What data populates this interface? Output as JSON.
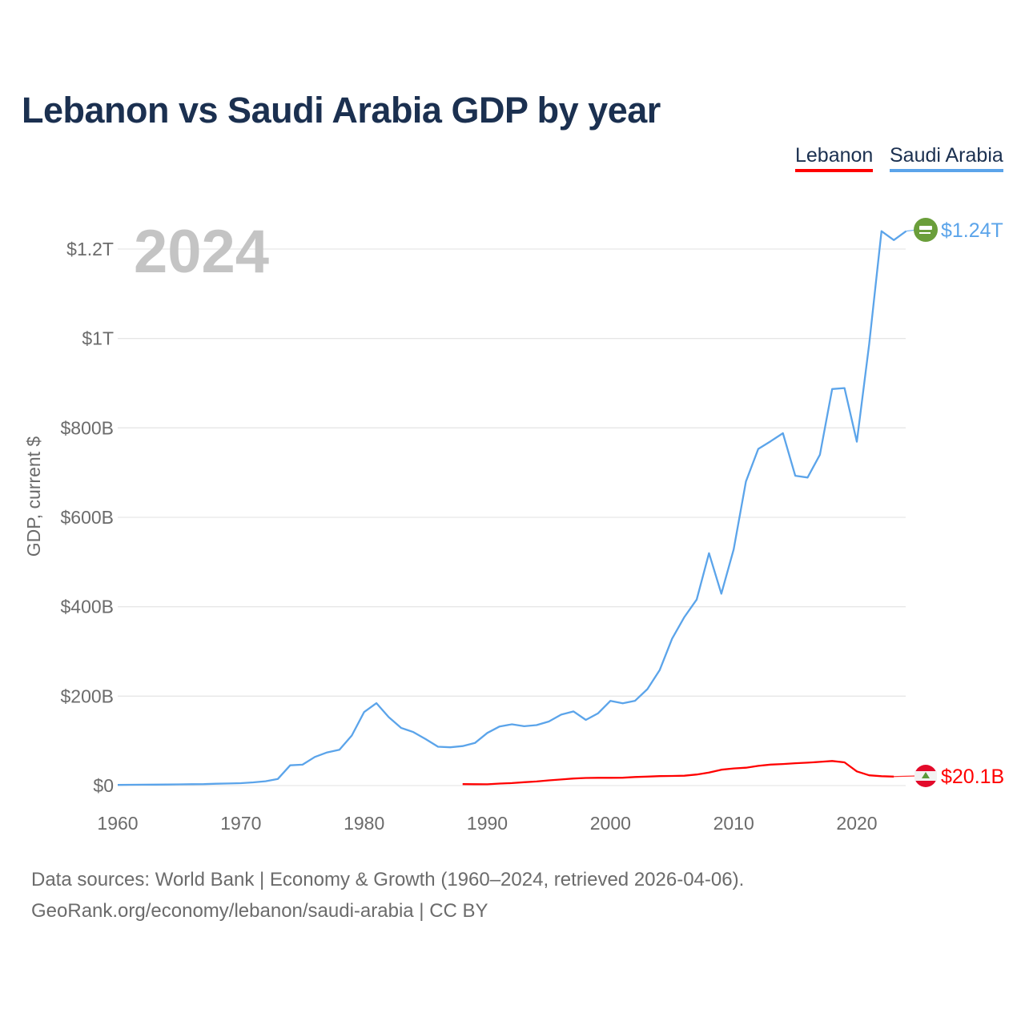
{
  "title": "Lebanon vs Saudi Arabia GDP by year",
  "legend": [
    "Lebanon",
    "Saudi Arabia"
  ],
  "year_label": "2024",
  "footer": {
    "line1": "Data sources: World Bank | Economy & Growth (1960–2024, retrieved 2026-04-06).",
    "line2": "GeoRank.org/economy/lebanon/saudi-arabia | CC BY"
  },
  "chart_data": {
    "type": "line",
    "title": "Lebanon vs Saudi Arabia GDP by year",
    "xlabel": "",
    "ylabel": "GDP, current $",
    "xlim": [
      1960,
      2024
    ],
    "ylim": [
      0,
      1300
    ],
    "units": "billion USD",
    "x_ticks": [
      1960,
      1970,
      1980,
      1990,
      2000,
      2010,
      2020
    ],
    "x_tick_labels": [
      "1960",
      "1970",
      "1980",
      "1990",
      "2000",
      "2010",
      "2020"
    ],
    "y_ticks": [
      0,
      200,
      400,
      600,
      800,
      1000,
      1200
    ],
    "y_tick_labels": [
      "$0",
      "$200B",
      "$400B",
      "$600B",
      "$800B",
      "$1T",
      "$1.2T"
    ],
    "grid": true,
    "legend_position": "top-right",
    "series": [
      {
        "name": "Lebanon",
        "color": "#ff0000",
        "end_label": "$20.1B",
        "flag": "lebanon-flag",
        "x": [
          1988,
          1989,
          1990,
          1991,
          1992,
          1993,
          1994,
          1995,
          1996,
          1997,
          1998,
          1999,
          2000,
          2001,
          2002,
          2003,
          2004,
          2005,
          2006,
          2007,
          2008,
          2009,
          2010,
          2011,
          2012,
          2013,
          2014,
          2015,
          2016,
          2017,
          2018,
          2019,
          2020,
          2021,
          2022,
          2023
        ],
        "values": [
          3.3,
          3.0,
          2.8,
          4.5,
          5.5,
          7.5,
          9.1,
          11.7,
          13.7,
          15.7,
          17.0,
          17.4,
          17.3,
          17.6,
          19.2,
          20.1,
          21.1,
          21.5,
          22.0,
          24.8,
          29.0,
          35.5,
          38.4,
          40.0,
          44.0,
          46.9,
          48.1,
          49.9,
          51.2,
          53.0,
          55.0,
          52.0,
          31.7,
          23.0,
          21.0,
          20.1
        ]
      },
      {
        "name": "Saudi Arabia",
        "color": "#5ba4ea",
        "end_label": "$1.24T",
        "flag": "saudi-arabia-flag",
        "x": [
          1960,
          1961,
          1962,
          1963,
          1964,
          1965,
          1966,
          1967,
          1968,
          1969,
          1970,
          1971,
          1972,
          1973,
          1974,
          1975,
          1976,
          1977,
          1978,
          1979,
          1980,
          1981,
          1982,
          1983,
          1984,
          1985,
          1986,
          1987,
          1988,
          1989,
          1990,
          1991,
          1992,
          1993,
          1994,
          1995,
          1996,
          1997,
          1998,
          1999,
          2000,
          2001,
          2002,
          2003,
          2004,
          2005,
          2006,
          2007,
          2008,
          2009,
          2010,
          2011,
          2012,
          2013,
          2014,
          2015,
          2016,
          2017,
          2018,
          2019,
          2020,
          2021,
          2022,
          2023,
          2024
        ],
        "values": [
          1.5,
          1.8,
          2.0,
          2.1,
          2.3,
          2.6,
          3.0,
          3.3,
          4.2,
          4.6,
          5.4,
          7.2,
          9.7,
          14.9,
          45.4,
          46.8,
          64.0,
          74.2,
          80.3,
          111.9,
          164.5,
          184.3,
          153.2,
          129.2,
          119.6,
          103.9,
          86.9,
          85.7,
          88.3,
          95.3,
          117.6,
          132.2,
          137.1,
          132.8,
          135.2,
          143.3,
          158.7,
          165.9,
          146.8,
          161.7,
          189.5,
          184.1,
          189.6,
          215.8,
          258.7,
          328.5,
          376.9,
          416.0,
          519.8,
          429.1,
          528.2,
          680.0,
          753.0,
          770.0,
          788.0,
          693.0,
          689.0,
          740.0,
          887.0,
          889.0,
          769.0,
          987.0,
          1240.0,
          1220.0,
          1240.0
        ]
      }
    ]
  }
}
